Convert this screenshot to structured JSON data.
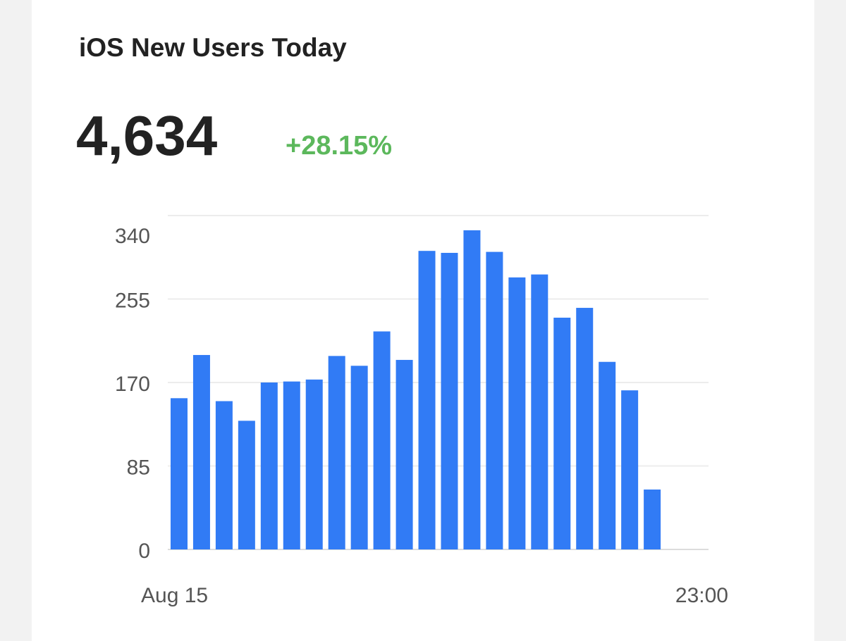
{
  "chart_data": {
    "type": "bar",
    "title": "iOS New Users Today",
    "total": "4,634",
    "change": "+28.15%",
    "categories": [
      "Aug 15",
      null,
      null,
      null,
      null,
      null,
      null,
      null,
      null,
      null,
      null,
      null,
      null,
      null,
      null,
      null,
      null,
      null,
      null,
      null,
      null,
      null,
      null,
      "23:00"
    ],
    "values": [
      154,
      198,
      151,
      131,
      170,
      171,
      173,
      197,
      187,
      222,
      193,
      304,
      302,
      325,
      303,
      277,
      280,
      236,
      246,
      191,
      162,
      61,
      null,
      null
    ],
    "color": "#317bf5",
    "change_color": "#5cb85c",
    "ylim": [
      0,
      340
    ],
    "yticks": [
      0,
      85,
      170,
      255,
      340
    ],
    "grid": true
  }
}
